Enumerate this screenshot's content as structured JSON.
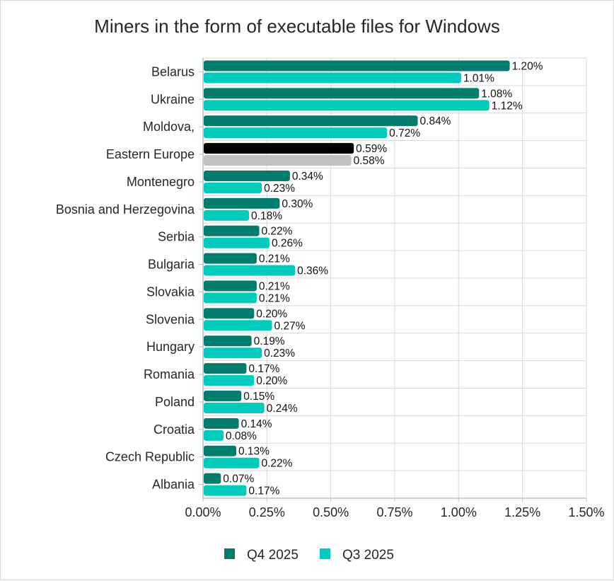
{
  "chart_data": {
    "type": "bar",
    "orientation": "horizontal",
    "title": "Miners in the form of executable files for Windows",
    "xlabel": "",
    "ylabel": "",
    "xlim": [
      0,
      1.5
    ],
    "x_ticks": [
      0,
      0.25,
      0.5,
      0.75,
      1.0,
      1.25,
      1.5
    ],
    "x_tick_labels": [
      "0.00%",
      "0.25%",
      "0.50%",
      "0.75%",
      "1.00%",
      "1.25%",
      "1.50%"
    ],
    "grid": true,
    "legend_position": "bottom",
    "categories": [
      "Belarus",
      "Ukraine",
      "Moldova,",
      "Eastern Europe",
      "Montenegro",
      "Bosnia and Herzegovina",
      "Serbia",
      "Bulgaria",
      "Slovakia",
      "Slovenia",
      "Hungary",
      "Romania",
      "Poland",
      "Croatia",
      "Czech Republic",
      "Albania"
    ],
    "series": [
      {
        "name": "Q4 2025",
        "color": "#007D6C",
        "values": [
          1.2,
          1.08,
          0.84,
          0.59,
          0.34,
          0.3,
          0.22,
          0.21,
          0.21,
          0.2,
          0.19,
          0.17,
          0.15,
          0.14,
          0.13,
          0.07
        ],
        "labels": [
          "1.20%",
          "1.08%",
          "0.84%",
          "0.59%",
          "0.34%",
          "0.30%",
          "0.22%",
          "0.21%",
          "0.21%",
          "0.20%",
          "0.19%",
          "0.17%",
          "0.15%",
          "0.14%",
          "0.13%",
          "0.07%"
        ]
      },
      {
        "name": "Q3 2025",
        "color": "#00CCBE",
        "values": [
          1.01,
          1.12,
          0.72,
          0.58,
          0.23,
          0.18,
          0.26,
          0.36,
          0.21,
          0.27,
          0.23,
          0.2,
          0.24,
          0.08,
          0.22,
          0.17
        ],
        "labels": [
          "1.01%",
          "1.12%",
          "0.72%",
          "0.58%",
          "0.23%",
          "0.18%",
          "0.26%",
          "0.36%",
          "0.21%",
          "0.27%",
          "0.23%",
          "0.20%",
          "0.24%",
          "0.08%",
          "0.22%",
          "0.17%"
        ]
      }
    ],
    "highlight": {
      "category": "Eastern Europe",
      "colors": {
        "Q4 2025": "#000000",
        "Q3 2025": "#C0C0C0"
      }
    }
  },
  "colors": {
    "grid": "#D9D9D9",
    "axis": "#BFBFBF",
    "text": "#262626"
  }
}
